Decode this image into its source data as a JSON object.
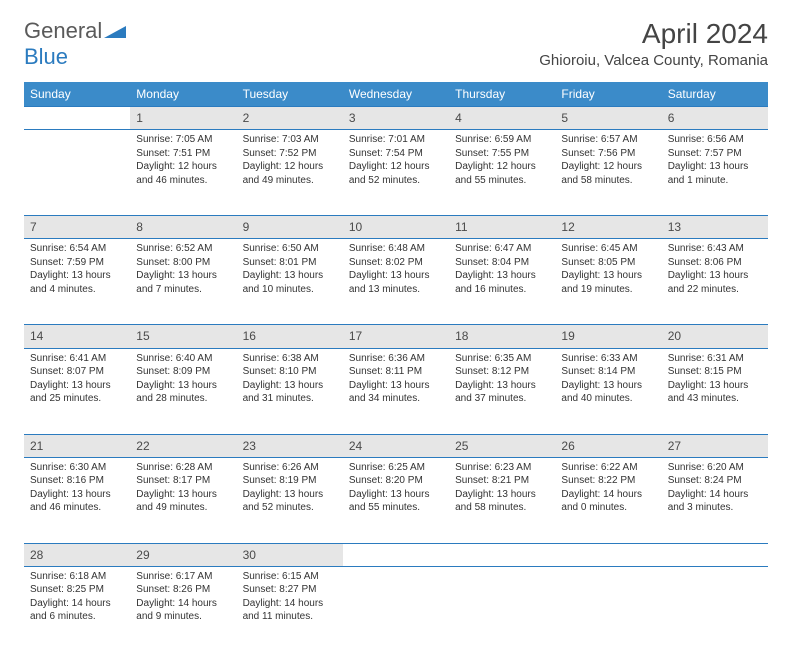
{
  "logo": {
    "text1": "General",
    "text2": "Blue"
  },
  "title": "April 2024",
  "location": "Ghioroiu, Valcea County, Romania",
  "colors": {
    "header_bg": "#3b8bc9",
    "header_text": "#ffffff",
    "daynum_bg": "#e6e6e6",
    "border": "#2b7bbf",
    "logo_gray": "#5a5a5a",
    "logo_blue": "#2b7bbf"
  },
  "day_headers": [
    "Sunday",
    "Monday",
    "Tuesday",
    "Wednesday",
    "Thursday",
    "Friday",
    "Saturday"
  ],
  "weeks": [
    {
      "nums": [
        "",
        "1",
        "2",
        "3",
        "4",
        "5",
        "6"
      ],
      "cells": [
        [],
        [
          "Sunrise: 7:05 AM",
          "Sunset: 7:51 PM",
          "Daylight: 12 hours",
          "and 46 minutes."
        ],
        [
          "Sunrise: 7:03 AM",
          "Sunset: 7:52 PM",
          "Daylight: 12 hours",
          "and 49 minutes."
        ],
        [
          "Sunrise: 7:01 AM",
          "Sunset: 7:54 PM",
          "Daylight: 12 hours",
          "and 52 minutes."
        ],
        [
          "Sunrise: 6:59 AM",
          "Sunset: 7:55 PM",
          "Daylight: 12 hours",
          "and 55 minutes."
        ],
        [
          "Sunrise: 6:57 AM",
          "Sunset: 7:56 PM",
          "Daylight: 12 hours",
          "and 58 minutes."
        ],
        [
          "Sunrise: 6:56 AM",
          "Sunset: 7:57 PM",
          "Daylight: 13 hours",
          "and 1 minute."
        ]
      ]
    },
    {
      "nums": [
        "7",
        "8",
        "9",
        "10",
        "11",
        "12",
        "13"
      ],
      "cells": [
        [
          "Sunrise: 6:54 AM",
          "Sunset: 7:59 PM",
          "Daylight: 13 hours",
          "and 4 minutes."
        ],
        [
          "Sunrise: 6:52 AM",
          "Sunset: 8:00 PM",
          "Daylight: 13 hours",
          "and 7 minutes."
        ],
        [
          "Sunrise: 6:50 AM",
          "Sunset: 8:01 PM",
          "Daylight: 13 hours",
          "and 10 minutes."
        ],
        [
          "Sunrise: 6:48 AM",
          "Sunset: 8:02 PM",
          "Daylight: 13 hours",
          "and 13 minutes."
        ],
        [
          "Sunrise: 6:47 AM",
          "Sunset: 8:04 PM",
          "Daylight: 13 hours",
          "and 16 minutes."
        ],
        [
          "Sunrise: 6:45 AM",
          "Sunset: 8:05 PM",
          "Daylight: 13 hours",
          "and 19 minutes."
        ],
        [
          "Sunrise: 6:43 AM",
          "Sunset: 8:06 PM",
          "Daylight: 13 hours",
          "and 22 minutes."
        ]
      ]
    },
    {
      "nums": [
        "14",
        "15",
        "16",
        "17",
        "18",
        "19",
        "20"
      ],
      "cells": [
        [
          "Sunrise: 6:41 AM",
          "Sunset: 8:07 PM",
          "Daylight: 13 hours",
          "and 25 minutes."
        ],
        [
          "Sunrise: 6:40 AM",
          "Sunset: 8:09 PM",
          "Daylight: 13 hours",
          "and 28 minutes."
        ],
        [
          "Sunrise: 6:38 AM",
          "Sunset: 8:10 PM",
          "Daylight: 13 hours",
          "and 31 minutes."
        ],
        [
          "Sunrise: 6:36 AM",
          "Sunset: 8:11 PM",
          "Daylight: 13 hours",
          "and 34 minutes."
        ],
        [
          "Sunrise: 6:35 AM",
          "Sunset: 8:12 PM",
          "Daylight: 13 hours",
          "and 37 minutes."
        ],
        [
          "Sunrise: 6:33 AM",
          "Sunset: 8:14 PM",
          "Daylight: 13 hours",
          "and 40 minutes."
        ],
        [
          "Sunrise: 6:31 AM",
          "Sunset: 8:15 PM",
          "Daylight: 13 hours",
          "and 43 minutes."
        ]
      ]
    },
    {
      "nums": [
        "21",
        "22",
        "23",
        "24",
        "25",
        "26",
        "27"
      ],
      "cells": [
        [
          "Sunrise: 6:30 AM",
          "Sunset: 8:16 PM",
          "Daylight: 13 hours",
          "and 46 minutes."
        ],
        [
          "Sunrise: 6:28 AM",
          "Sunset: 8:17 PM",
          "Daylight: 13 hours",
          "and 49 minutes."
        ],
        [
          "Sunrise: 6:26 AM",
          "Sunset: 8:19 PM",
          "Daylight: 13 hours",
          "and 52 minutes."
        ],
        [
          "Sunrise: 6:25 AM",
          "Sunset: 8:20 PM",
          "Daylight: 13 hours",
          "and 55 minutes."
        ],
        [
          "Sunrise: 6:23 AM",
          "Sunset: 8:21 PM",
          "Daylight: 13 hours",
          "and 58 minutes."
        ],
        [
          "Sunrise: 6:22 AM",
          "Sunset: 8:22 PM",
          "Daylight: 14 hours",
          "and 0 minutes."
        ],
        [
          "Sunrise: 6:20 AM",
          "Sunset: 8:24 PM",
          "Daylight: 14 hours",
          "and 3 minutes."
        ]
      ]
    },
    {
      "nums": [
        "28",
        "29",
        "30",
        "",
        "",
        "",
        ""
      ],
      "cells": [
        [
          "Sunrise: 6:18 AM",
          "Sunset: 8:25 PM",
          "Daylight: 14 hours",
          "and 6 minutes."
        ],
        [
          "Sunrise: 6:17 AM",
          "Sunset: 8:26 PM",
          "Daylight: 14 hours",
          "and 9 minutes."
        ],
        [
          "Sunrise: 6:15 AM",
          "Sunset: 8:27 PM",
          "Daylight: 14 hours",
          "and 11 minutes."
        ],
        [],
        [],
        [],
        []
      ]
    }
  ]
}
